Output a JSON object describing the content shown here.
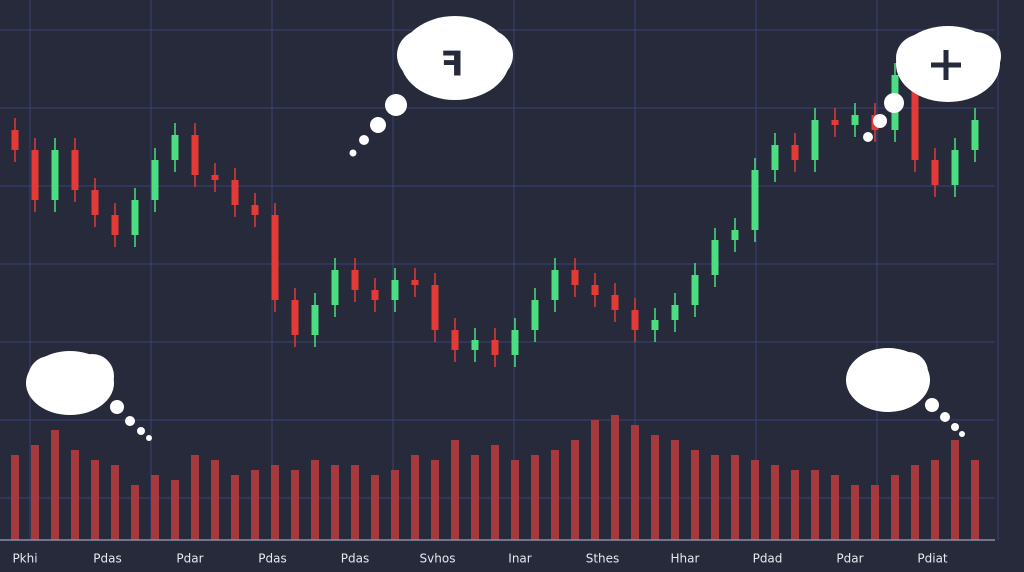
{
  "chart_data": {
    "type": "candlestick",
    "x_labels": [
      "Pkhi",
      "Pdas",
      "Pdar",
      "Pdas",
      "Pdas",
      "Svhos",
      "Inar",
      "Sthes",
      "Hhar",
      "Pdad",
      "Pdar",
      "Pdiat"
    ],
    "open": [
      410,
      390,
      340,
      390,
      350,
      325,
      305,
      340,
      380,
      405,
      365,
      360,
      335,
      325,
      240,
      205,
      235,
      270,
      250,
      240,
      260,
      255,
      210,
      190,
      200,
      185,
      210,
      240,
      270,
      255,
      245,
      230,
      210,
      220,
      235,
      265,
      300,
      310,
      370,
      395,
      380,
      420,
      415,
      425,
      410,
      465,
      380,
      355,
      390
    ],
    "high": [
      422,
      402,
      402,
      402,
      362,
      337,
      352,
      392,
      417,
      417,
      377,
      372,
      347,
      337,
      252,
      247,
      282,
      282,
      262,
      272,
      272,
      267,
      222,
      212,
      212,
      222,
      252,
      282,
      282,
      267,
      257,
      242,
      232,
      247,
      277,
      312,
      322,
      382,
      407,
      407,
      432,
      432,
      437,
      437,
      477,
      477,
      392,
      402,
      432
    ],
    "low": [
      378,
      328,
      328,
      338,
      313,
      293,
      293,
      328,
      368,
      353,
      348,
      323,
      313,
      228,
      193,
      193,
      223,
      238,
      228,
      228,
      243,
      198,
      178,
      178,
      173,
      173,
      198,
      228,
      243,
      233,
      218,
      198,
      198,
      208,
      223,
      253,
      288,
      298,
      358,
      368,
      368,
      403,
      403,
      398,
      398,
      368,
      343,
      343,
      378
    ],
    "close": [
      390,
      340,
      390,
      350,
      325,
      305,
      340,
      380,
      405,
      365,
      360,
      335,
      325,
      240,
      205,
      235,
      270,
      250,
      240,
      260,
      255,
      210,
      190,
      200,
      185,
      210,
      240,
      270,
      255,
      245,
      230,
      210,
      220,
      235,
      265,
      300,
      310,
      370,
      395,
      380,
      420,
      415,
      425,
      410,
      465,
      380,
      355,
      390,
      420
    ],
    "volume": [
      85,
      95,
      110,
      90,
      80,
      75,
      55,
      65,
      60,
      85,
      80,
      65,
      70,
      75,
      70,
      80,
      75,
      75,
      65,
      70,
      85,
      80,
      100,
      85,
      95,
      80,
      85,
      90,
      100,
      120,
      125,
      115,
      105,
      100,
      90,
      85,
      85,
      80,
      75,
      70,
      70,
      65,
      55,
      55,
      65,
      75,
      80,
      100,
      80
    ],
    "ylim": [
      0,
      510
    ],
    "y2lim": [
      0,
      130
    ],
    "up_color": "#4ade80",
    "down_color": "#e53935",
    "volume_color": "#a53a3e",
    "grid": true
  }
}
